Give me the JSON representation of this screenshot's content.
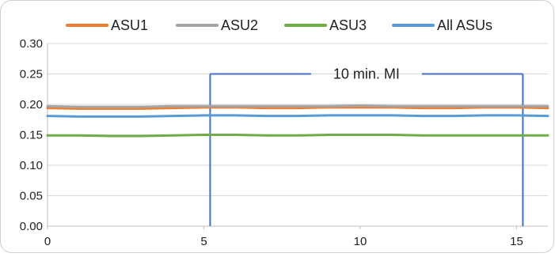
{
  "chart_data": {
    "type": "line",
    "title": "",
    "xlabel": "",
    "ylabel": "",
    "xlim": [
      0,
      16
    ],
    "ylim": [
      0,
      0.3
    ],
    "x_ticks": [
      "0",
      "5",
      "10",
      "15"
    ],
    "x_tick_values": [
      0,
      5,
      10,
      15
    ],
    "y_ticks": [
      "0.00",
      "0.05",
      "0.10",
      "0.15",
      "0.20",
      "0.25",
      "0.30"
    ],
    "y_tick_values": [
      0,
      0.05,
      0.1,
      0.15,
      0.2,
      0.25,
      0.3
    ],
    "grid": "horizontal",
    "legend": "top",
    "x": [
      0,
      1,
      2,
      3,
      4,
      5,
      6,
      7,
      8,
      9,
      10,
      11,
      12,
      13,
      14,
      15,
      16
    ],
    "series": [
      {
        "name": "ASU1",
        "color": "#ED7D31",
        "values": [
          0.194,
          0.193,
          0.193,
          0.193,
          0.194,
          0.195,
          0.195,
          0.194,
          0.194,
          0.195,
          0.195,
          0.195,
          0.194,
          0.194,
          0.195,
          0.195,
          0.194
        ]
      },
      {
        "name": "ASU2",
        "color": "#A5A5A5",
        "values": [
          0.197,
          0.196,
          0.196,
          0.196,
          0.197,
          0.197,
          0.197,
          0.197,
          0.197,
          0.197,
          0.198,
          0.197,
          0.197,
          0.197,
          0.197,
          0.197,
          0.197
        ]
      },
      {
        "name": "ASU3",
        "color": "#70AD47",
        "values": [
          0.149,
          0.149,
          0.148,
          0.148,
          0.149,
          0.15,
          0.15,
          0.149,
          0.149,
          0.15,
          0.15,
          0.15,
          0.149,
          0.149,
          0.149,
          0.149,
          0.149
        ]
      },
      {
        "name": "All ASUs",
        "color": "#5B9BD5",
        "values": [
          0.181,
          0.18,
          0.18,
          0.18,
          0.181,
          0.182,
          0.182,
          0.181,
          0.181,
          0.182,
          0.182,
          0.182,
          0.181,
          0.181,
          0.182,
          0.182,
          0.181
        ]
      }
    ],
    "annotations": [
      {
        "label": "10 min. MI",
        "x_start": 5.2,
        "x_end": 15.2,
        "y": 0.25,
        "color": "#4472C4"
      }
    ]
  }
}
